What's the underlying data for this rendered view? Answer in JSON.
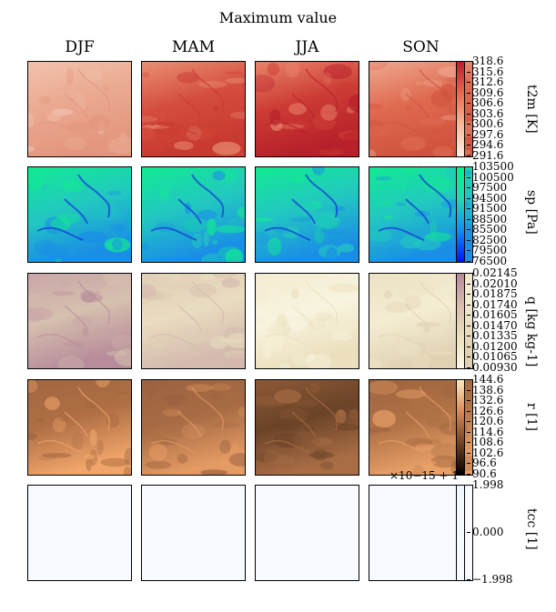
{
  "title": "Maximum value",
  "seasons": [
    "DJF",
    "MAM",
    "JJA",
    "SON"
  ],
  "chart_data": [
    {
      "type": "heatmap",
      "variable": "t2m [K]",
      "cmap": [
        "#fdeee6",
        "#f7b89a",
        "#e9694f",
        "#b61f2e"
      ],
      "vmin": 291.6,
      "vmax": 318.6,
      "ticks": [
        "318.6",
        "315.6",
        "312.6",
        "309.6",
        "306.6",
        "303.6",
        "300.6",
        "297.6",
        "294.6",
        "291.6"
      ],
      "panel_palettes": [
        [
          "#f2c2ae",
          "#eaa990",
          "#e3967e"
        ],
        [
          "#e98f73",
          "#d44d3e",
          "#c8392f"
        ],
        [
          "#e9836a",
          "#cc3c34",
          "#b8202a"
        ],
        [
          "#efa88f",
          "#de6a50",
          "#d1533f"
        ]
      ]
    },
    {
      "type": "heatmap",
      "variable": "sp [Pa]",
      "cmap": [
        "#0015ff",
        "#0f8ef0",
        "#2ad6b4",
        "#00f28a"
      ],
      "vmin": 76500,
      "vmax": 103500,
      "ticks": [
        "103500",
        "100500",
        "97500",
        "94500",
        "91500",
        "88500",
        "85500",
        "82500",
        "79500",
        "76500"
      ],
      "panel_palettes": [
        [
          "#12ea92",
          "#22c8c0",
          "#1a8ee6"
        ],
        [
          "#12ea92",
          "#22c8c0",
          "#1a8ee6"
        ],
        [
          "#12ea92",
          "#22c8c0",
          "#1a8ee6"
        ],
        [
          "#12ea92",
          "#22c8c0",
          "#1a8ee6"
        ]
      ]
    },
    {
      "type": "heatmap",
      "variable": "q [kg kg-1]",
      "cmap": [
        "#fbf7e6",
        "#ebe0bc",
        "#d5bcae",
        "#b8899a"
      ],
      "vmin": 0.0093,
      "vmax": 0.02145,
      "ticks": [
        "0.02145",
        "0.02010",
        "0.01875",
        "0.01740",
        "0.01605",
        "0.01470",
        "0.01335",
        "0.01200",
        "0.01065",
        "0.00930"
      ],
      "panel_palettes": [
        [
          "#c9a6a8",
          "#d6c0ae",
          "#b88d9b"
        ],
        [
          "#dfcfb5",
          "#e9dcbf",
          "#d4b9ae"
        ],
        [
          "#f3ecd1",
          "#f8f4df",
          "#ebdfbd"
        ],
        [
          "#ece2c3",
          "#f4edd2",
          "#e1d1b3"
        ]
      ]
    },
    {
      "type": "heatmap",
      "variable": "r [1]",
      "cmap": [
        "#000000",
        "#6f4323",
        "#d98a55",
        "#ffe8c0"
      ],
      "vmin": 90.6,
      "vmax": 144.6,
      "ticks": [
        "144.6",
        "138.6",
        "132.6",
        "126.6",
        "120.6",
        "114.6",
        "108.6",
        "102.6",
        "96.6",
        "90.6"
      ],
      "panel_palettes": [
        [
          "#a16640",
          "#b06f45",
          "#f0a56a"
        ],
        [
          "#9c6240",
          "#a86b44",
          "#e39a63"
        ],
        [
          "#8c5937",
          "#6b4328",
          "#a86d45"
        ],
        [
          "#9e6440",
          "#b07145",
          "#e7a068"
        ]
      ]
    },
    {
      "type": "heatmap",
      "variable": "tcc [1]",
      "cmap": [
        "#f7fbff",
        "#f2f7fe"
      ],
      "vmin": -1.998,
      "vmax": 1.998,
      "ticks": [
        "1.998",
        "0.000",
        "−1.998"
      ],
      "offset": "×10−15 + 1",
      "panel_palettes": [
        [
          "#f7fbff",
          "#f7fbff",
          "#f7fbff"
        ],
        [
          "#f7fbff",
          "#f7fbff",
          "#f7fbff"
        ],
        [
          "#f7fbff",
          "#f7fbff",
          "#f7fbff"
        ],
        [
          "#f7fbff",
          "#f7fbff",
          "#f7fbff"
        ]
      ]
    }
  ]
}
